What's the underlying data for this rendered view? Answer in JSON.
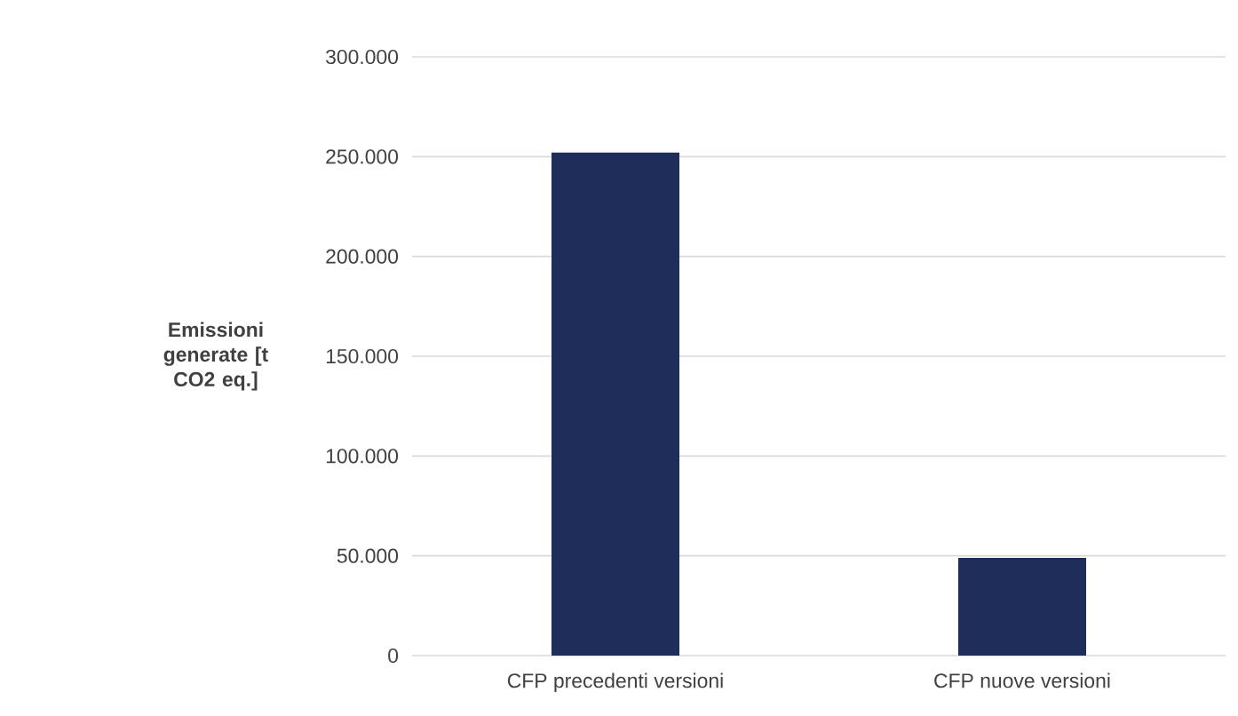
{
  "chart_data": {
    "type": "bar",
    "ylabel": "Emissioni generate [t CO2 eq.]",
    "categories": [
      "CFP precedenti versioni",
      "CFP nuove versioni"
    ],
    "values": [
      252000,
      49000
    ],
    "color": "#1f2d5a",
    "ylim": [
      0,
      300000
    ],
    "yticks": [
      {
        "value": 0,
        "label": "0"
      },
      {
        "value": 50000,
        "label": "50.000"
      },
      {
        "value": 100000,
        "label": "100.000"
      },
      {
        "value": 150000,
        "label": "150.000"
      },
      {
        "value": 200000,
        "label": "200.000"
      },
      {
        "value": 250000,
        "label": "250.000"
      },
      {
        "value": 300000,
        "label": "300.000"
      }
    ],
    "grid": "y"
  }
}
